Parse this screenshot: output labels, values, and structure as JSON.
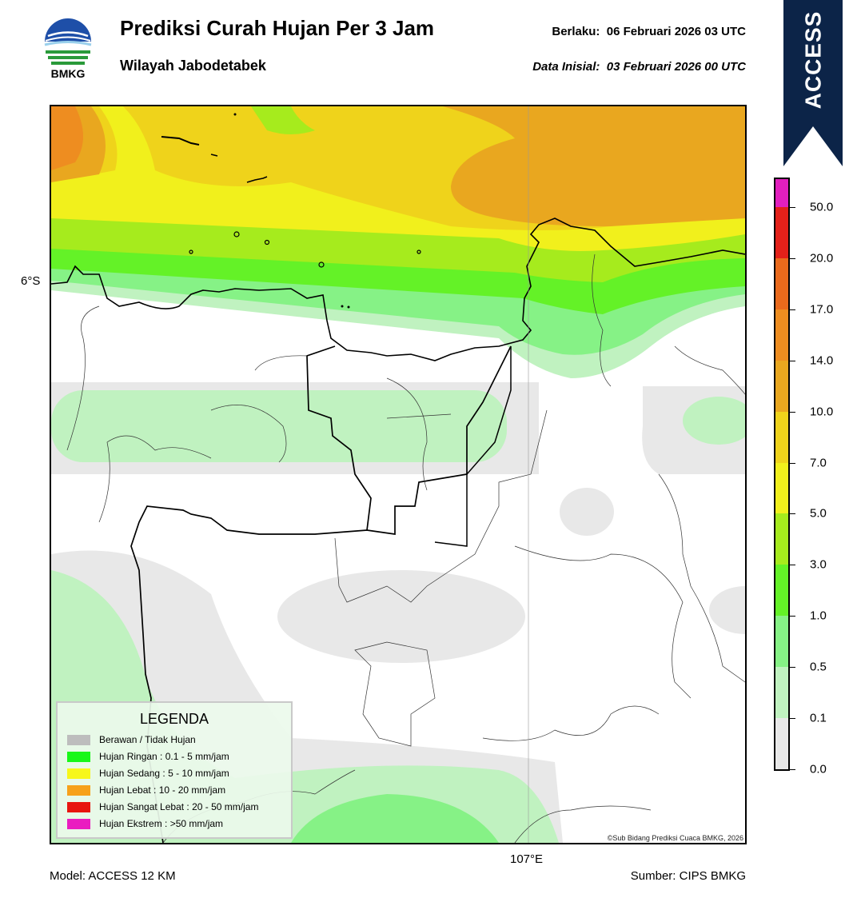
{
  "header": {
    "logo_text": "BMKG",
    "title": "Prediksi Curah Hujan Per 3 Jam",
    "subtitle": "Wilayah Jabodetabek",
    "valid_label": "Berlaku:",
    "valid_value": "06 Februari 2026 03 UTC",
    "init_label": "Data Inisial:",
    "init_value": "03 Februari 2026 00 UTC"
  },
  "badge": {
    "text": "ACCESS",
    "color": "#0c2448"
  },
  "map": {
    "lat_label": "6°S",
    "lon_label": "107°E",
    "copyright": "©Sub Bidang Prediksi Cuaca BMKG, 2026"
  },
  "colorbar": {
    "labels": [
      "0.0",
      "0.1",
      "0.5",
      "1.0",
      "3.0",
      "5.0",
      "7.0",
      "10.0",
      "14.0",
      "17.0",
      "20.0",
      "50.0"
    ],
    "colors": [
      "#e8e8e8",
      "#c0f2c0",
      "#86f286",
      "#64f227",
      "#a6eb1d",
      "#f1f01c",
      "#efd31b",
      "#e9a71f",
      "#ee8d20",
      "#ea6a1c",
      "#e3211a",
      "#e21fbe"
    ]
  },
  "legend": {
    "title": "LEGENDA",
    "items": [
      {
        "label": "Berawan / Tidak Hujan",
        "color": "#bdbdbd"
      },
      {
        "label": "Hujan Ringan : 0.1 - 5 mm/jam",
        "color": "#18f718"
      },
      {
        "label": "Hujan Sedang : 5 - 10 mm/jam",
        "color": "#f7f71a"
      },
      {
        "label": "Hujan Lebat : 10 - 20 mm/jam",
        "color": "#f7a11a"
      },
      {
        "label": "Hujan Sangat Lebat : 20 - 50 mm/jam",
        "color": "#e8150f"
      },
      {
        "label": "Hujan Ekstrem : >50 mm/jam",
        "color": "#ea1dc0"
      }
    ]
  },
  "footer": {
    "model": "Model: ACCESS 12 KM",
    "source": "Sumber: CIPS BMKG"
  }
}
